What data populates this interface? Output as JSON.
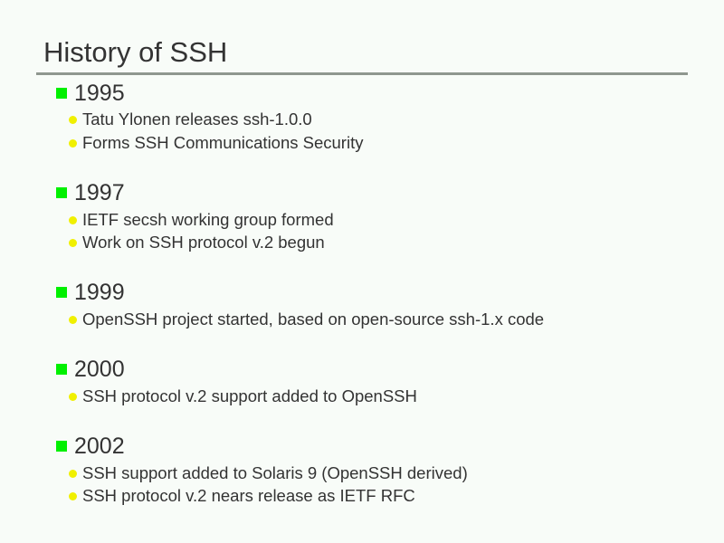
{
  "title": "History of SSH",
  "colors": {
    "level1_bullet": "#00f000",
    "level2_bullet": "#f0f000",
    "rule": "#8f978f"
  },
  "sections": [
    {
      "year": "1995",
      "items": [
        "Tatu Ylonen releases ssh-1.0.0",
        "Forms SSH Communications Security"
      ]
    },
    {
      "year": "1997",
      "items": [
        "IETF secsh working group formed",
        "Work on SSH protocol v.2 begun"
      ]
    },
    {
      "year": "1999",
      "items": [
        "OpenSSH project started, based on open-source ssh-1.x code"
      ]
    },
    {
      "year": "2000",
      "items": [
        "SSH protocol v.2 support added to OpenSSH"
      ]
    },
    {
      "year": "2002",
      "items": [
        "SSH support added to Solaris 9 (OpenSSH derived)",
        "SSH protocol v.2 nears release as IETF RFC"
      ]
    }
  ]
}
